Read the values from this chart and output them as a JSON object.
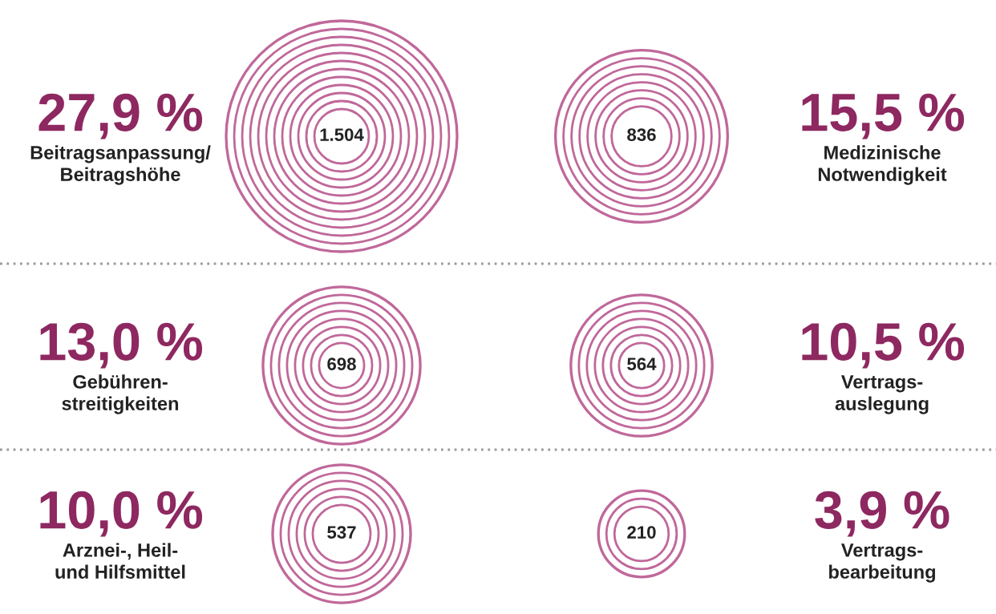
{
  "chart_data": {
    "type": "other",
    "categories": [
      "Beitragsanpassung/\nBeitragshöhe",
      "Medizinische\nNotwendigkeit",
      "Gebühren-\nstreitigkeiten",
      "Vertrags-\nauslegung",
      "Arznei-, Heil-\nund Hilfsmittel",
      "Vertrags-\nbearbeitung"
    ],
    "series": [
      {
        "color": "#c0689a",
        "values": [
          1504,
          836,
          698,
          564,
          537,
          210
        ],
        "value_labels": [
          "1.504",
          "836",
          "698",
          "564",
          "537",
          "210"
        ]
      },
      {
        "color": "#8e2860",
        "values": [
          27.9,
          15.5,
          13.0,
          10.5,
          10.0,
          3.9
        ],
        "value_labels": [
          "27,9 %",
          "15,5 %",
          "13,0 %",
          "10,5 %",
          "10,0 %",
          "3,9 %"
        ]
      }
    ],
    "data_labels": true
  }
}
